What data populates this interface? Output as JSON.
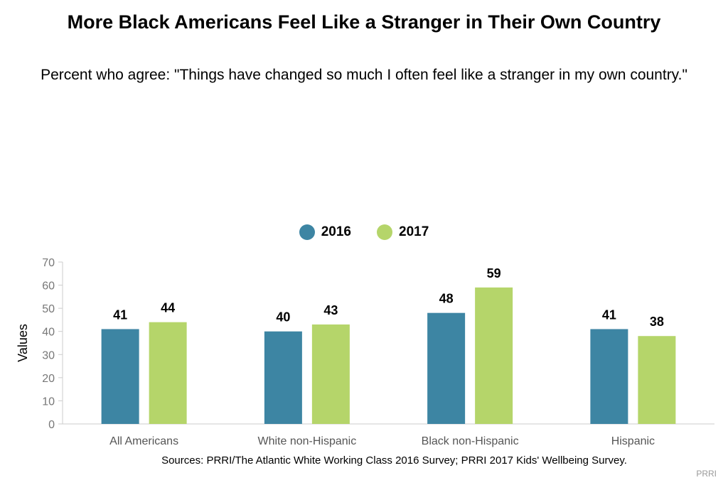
{
  "header": {
    "title": "More Black Americans Feel Like a Stranger in Their Own Country",
    "subtitle": "Percent who agree: \"Things have changed so much I often feel like a stranger in my own country.\""
  },
  "footer": {
    "source": "Sources: PRRI/The Atlantic White Working Class 2016 Survey; PRRI 2017 Kids' Wellbeing Survey.",
    "brand": "PRRI"
  },
  "colors": {
    "series_2016": "#3d85a3",
    "series_2017": "#b5d56a"
  },
  "chart_data": {
    "type": "bar",
    "title": "More Black Americans Feel Like a Stranger in Their Own Country",
    "subtitle": "Percent who agree: \"Things have changed so much I often feel like a stranger in my own country.\"",
    "categories": [
      "All Americans",
      "White non-Hispanic",
      "Black non-Hispanic",
      "Hispanic"
    ],
    "series": [
      {
        "name": "2016",
        "values": [
          41,
          40,
          48,
          41
        ]
      },
      {
        "name": "2017",
        "values": [
          44,
          43,
          59,
          38
        ]
      }
    ],
    "xlabel": "",
    "ylabel": "Values",
    "ylim": [
      0,
      70
    ],
    "yticks": [
      0,
      10,
      20,
      30,
      40,
      50,
      60,
      70
    ],
    "grid": false,
    "legend": "top-center"
  }
}
